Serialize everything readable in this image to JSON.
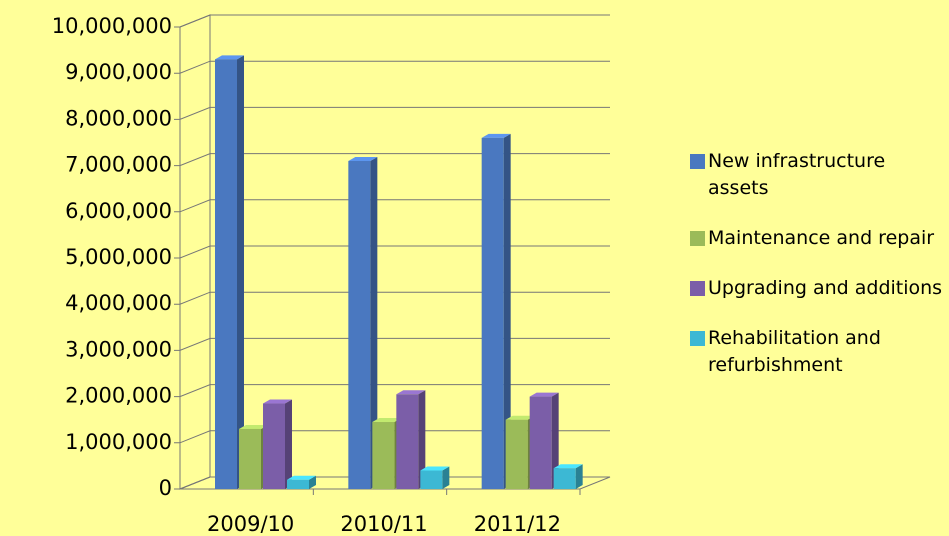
{
  "chart_data": {
    "type": "bar3d",
    "categories": [
      "2009/10",
      "2010/11",
      "2011/12"
    ],
    "series": [
      {
        "name": "New infrastructure assets",
        "color": "#4a78c0",
        "values": [
          9300000,
          7100000,
          7600000
        ]
      },
      {
        "name": "Maintenance and repair",
        "color": "#9bbb59",
        "values": [
          1300000,
          1450000,
          1500000
        ]
      },
      {
        "name": "Upgrading and additions",
        "color": "#7b5ea8",
        "values": [
          1850000,
          2050000,
          2000000
        ]
      },
      {
        "name": "Rehabilitation and refurbishment",
        "color": "#3cb8d4",
        "values": [
          200000,
          400000,
          450000
        ]
      }
    ],
    "ylim": [
      0,
      10000000
    ],
    "yticks": [
      0,
      {
        "value": 1000000,
        "label": "1,000,000"
      },
      {
        "value": 2000000,
        "label": "2,000,000"
      },
      {
        "value": 3000000,
        "label": "3,000,000"
      },
      {
        "value": 4000000,
        "label": "4,000,000"
      },
      {
        "value": 5000000,
        "label": "5,000,000"
      },
      {
        "value": 6000000,
        "label": "6,000,000"
      },
      {
        "value": 7000000,
        "label": "7,000,000"
      },
      {
        "value": 8000000,
        "label": "8,000,000"
      },
      {
        "value": 9000000,
        "label": "9,000,000"
      },
      {
        "value": 10000000,
        "label": "10,000,000"
      }
    ],
    "grid": true,
    "legend": "right"
  }
}
